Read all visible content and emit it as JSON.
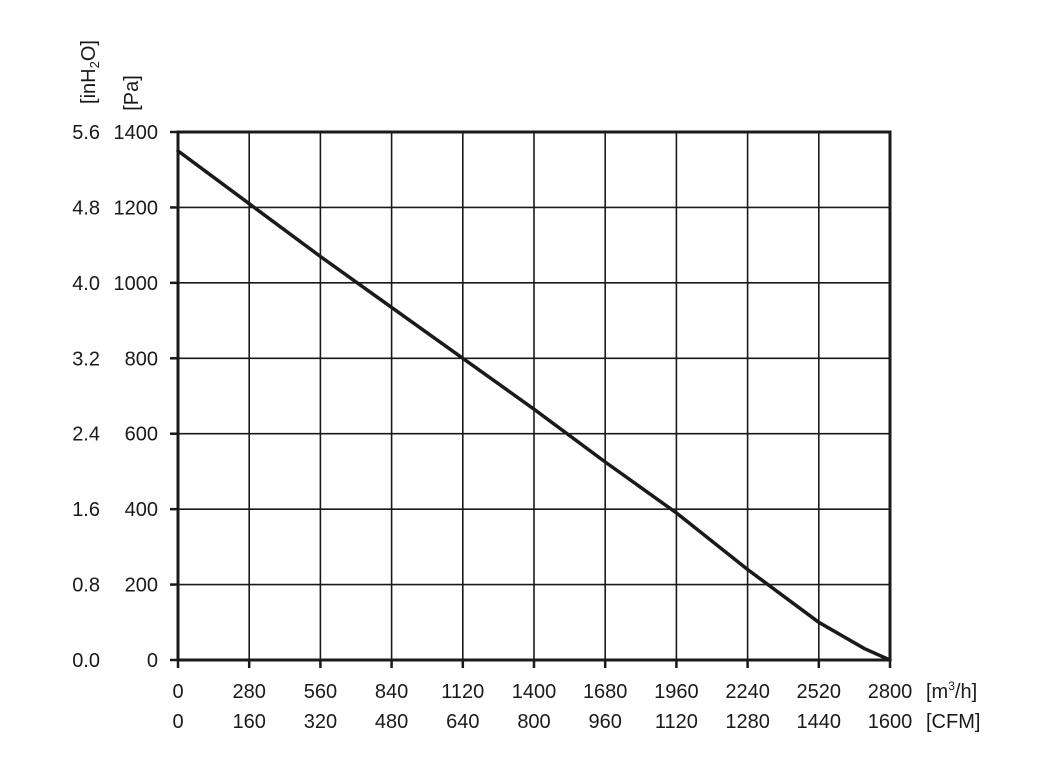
{
  "chart_data": {
    "type": "line",
    "title": "",
    "x_axes": {
      "primary": {
        "unit_label": "[m³/h]",
        "unit_base": "[m",
        "unit_sup": "3",
        "unit_tail": "/h]",
        "ticks": [
          "0",
          "280",
          "560",
          "840",
          "1120",
          "1400",
          "1680",
          "1960",
          "2240",
          "2520",
          "2800"
        ],
        "range": [
          0,
          2800
        ]
      },
      "secondary": {
        "unit_label": "[CFM]",
        "ticks": [
          "0",
          "160",
          "320",
          "480",
          "640",
          "800",
          "960",
          "1120",
          "1280",
          "1440",
          "1600"
        ]
      }
    },
    "y_axes": {
      "primary": {
        "unit_label": "[Pa]",
        "ticks": [
          "0",
          "200",
          "400",
          "600",
          "800",
          "1000",
          "1200",
          "1400"
        ],
        "range": [
          0,
          1400
        ]
      },
      "secondary": {
        "unit_label": "[inH₂O]",
        "unit_base": "[inH",
        "unit_sub": "2",
        "unit_tail": "O]",
        "ticks": [
          "0.0",
          "0.8",
          "1.6",
          "2.4",
          "3.2",
          "4.0",
          "4.8",
          "5.6"
        ]
      }
    },
    "grid": true,
    "series": [
      {
        "color": "#1a1a1a",
        "x": [
          0,
          280,
          560,
          840,
          1120,
          1400,
          1680,
          1960,
          2240,
          2520,
          2700,
          2800
        ],
        "y": [
          1350,
          1210,
          1070,
          935,
          800,
          665,
          525,
          390,
          240,
          100,
          30,
          0
        ]
      }
    ]
  }
}
